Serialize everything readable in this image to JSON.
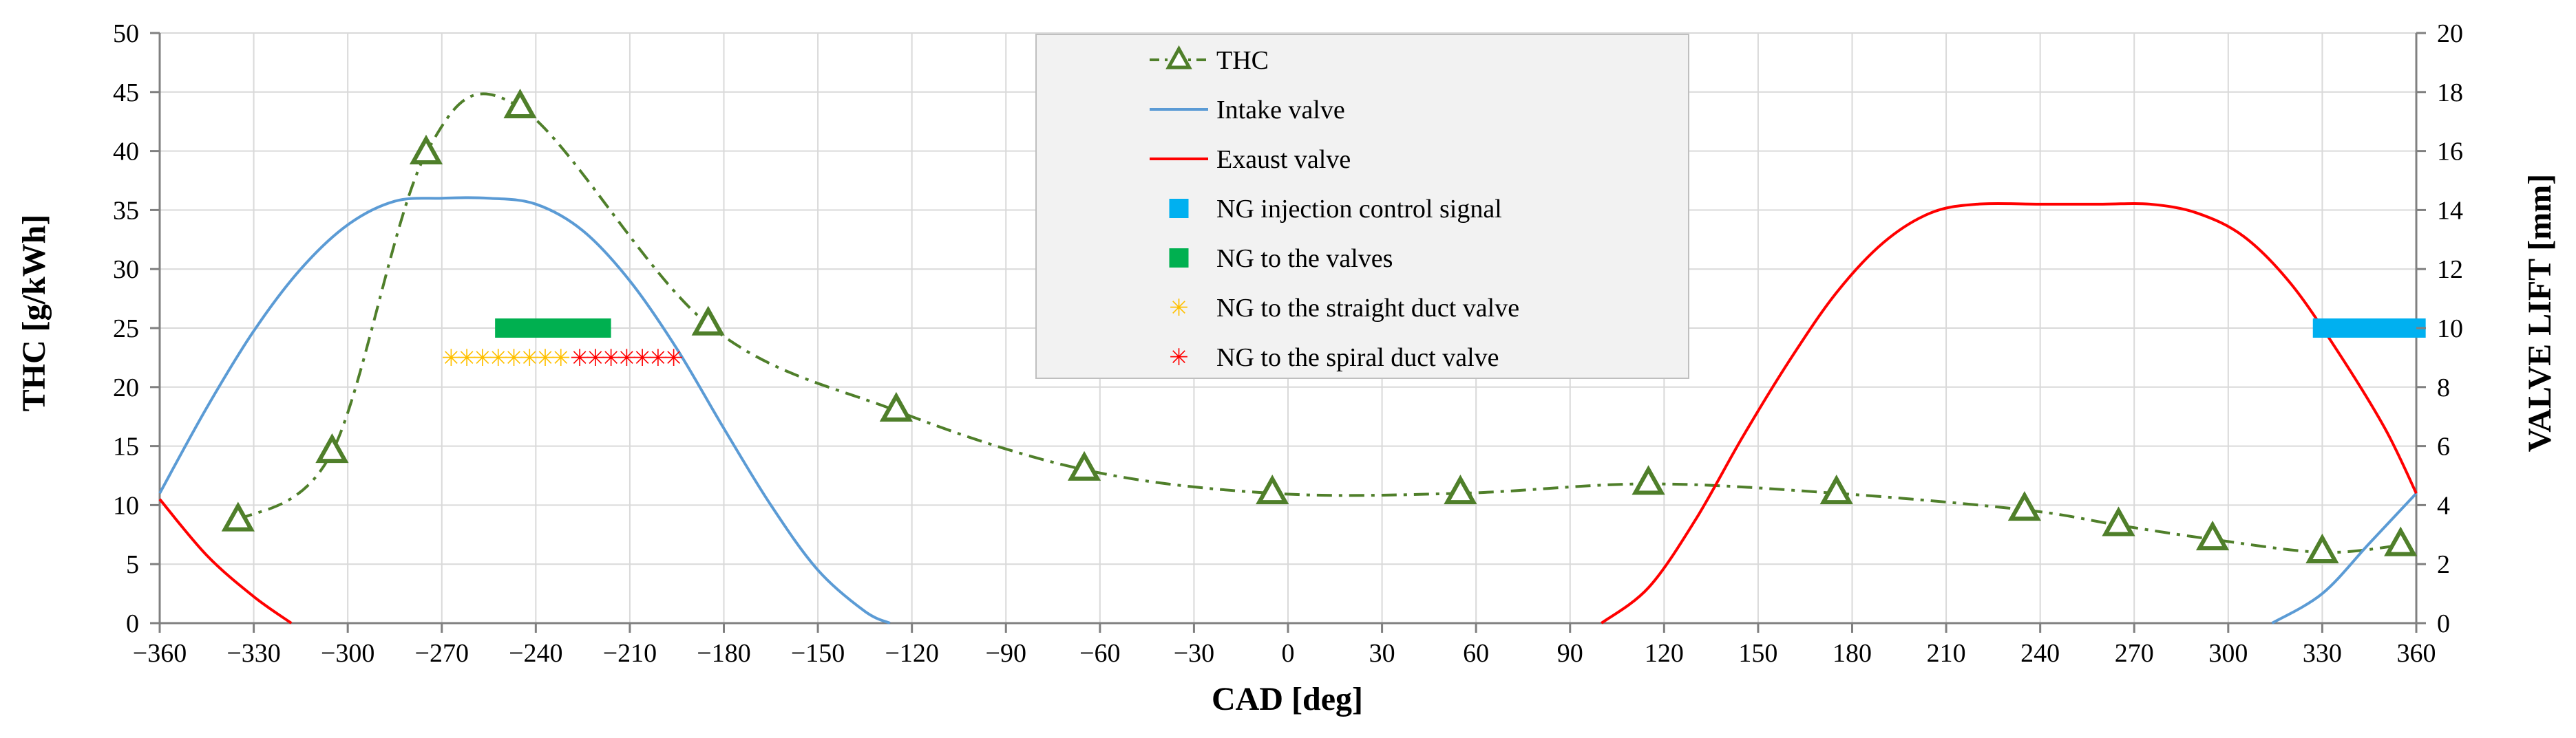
{
  "chart_data": {
    "type": "line",
    "title": "",
    "xlabel": "CAD [deg]",
    "ylabel": "THC [g/kWh]",
    "y2label": "VALVE LIFT [mm]",
    "xlim": [
      -360,
      360
    ],
    "ylim": [
      0,
      50
    ],
    "y2lim": [
      0,
      20
    ],
    "grid": true,
    "legend_position": "top-center",
    "x_ticks": [
      -360,
      -330,
      -300,
      -270,
      -240,
      -210,
      -180,
      -150,
      -120,
      -90,
      -60,
      -30,
      0,
      30,
      60,
      90,
      120,
      150,
      180,
      210,
      240,
      270,
      300,
      330,
      360
    ],
    "y_ticks": [
      0,
      5,
      10,
      15,
      20,
      25,
      30,
      35,
      40,
      45,
      50
    ],
    "y2_ticks": [
      0,
      2,
      4,
      6,
      8,
      10,
      12,
      14,
      16,
      18,
      20
    ],
    "x_tick_labels": [
      "−360",
      "−330",
      "−300",
      "−270",
      "−240",
      "−210",
      "−180",
      "−150",
      "−120",
      "−90",
      "−60",
      "−30",
      "0",
      "30",
      "60",
      "90",
      "120",
      "150",
      "180",
      "210",
      "240",
      "270",
      "300",
      "330",
      "360"
    ],
    "y_tick_labels": [
      "0",
      "5",
      "10",
      "15",
      "20",
      "25",
      "30",
      "35",
      "40",
      "45",
      "50"
    ],
    "y2_tick_labels": [
      "0",
      "2",
      "4",
      "6",
      "8",
      "10",
      "12",
      "14",
      "16",
      "18",
      "20"
    ],
    "series": [
      {
        "name": "THC",
        "axis": "left",
        "color": "#4F7F2A",
        "style": "dash-dot",
        "marker": "triangle",
        "points": [
          [
            -335,
            8.7
          ],
          [
            -305,
            14.5
          ],
          [
            -275,
            39.8
          ],
          [
            -245,
            43.7
          ],
          [
            -185,
            25.3
          ],
          [
            -125,
            18.0
          ],
          [
            -65,
            13.0
          ],
          [
            -5,
            11.0
          ],
          [
            55,
            11.0
          ],
          [
            115,
            11.8
          ],
          [
            175,
            11.0
          ],
          [
            235,
            9.6
          ],
          [
            265,
            8.3
          ],
          [
            295,
            7.1
          ],
          [
            330,
            6.0
          ],
          [
            355,
            6.6
          ]
        ]
      },
      {
        "name": "Intake valve",
        "axis": "right",
        "color": "#5B9BD5",
        "style": "solid",
        "peak_lift": 14.4,
        "points": [
          [
            -360,
            4.4
          ],
          [
            -345,
            7.3
          ],
          [
            -330,
            9.9
          ],
          [
            -315,
            12.0
          ],
          [
            -300,
            13.5
          ],
          [
            -285,
            14.3
          ],
          [
            -270,
            14.4
          ],
          [
            -255,
            14.4
          ],
          [
            -240,
            14.2
          ],
          [
            -225,
            13.3
          ],
          [
            -210,
            11.6
          ],
          [
            -195,
            9.3
          ],
          [
            -180,
            6.6
          ],
          [
            -165,
            4.0
          ],
          [
            -150,
            1.8
          ],
          [
            -135,
            0.4
          ],
          [
            -127,
            0
          ],
          [
            314,
            0
          ],
          [
            330,
            1.0
          ],
          [
            345,
            2.7
          ],
          [
            360,
            4.4
          ]
        ]
      },
      {
        "name": "Exaust valve",
        "axis": "right",
        "color": "#FF0000",
        "style": "solid",
        "peak_lift": 14.2,
        "points": [
          [
            -360,
            4.2
          ],
          [
            -345,
            2.3
          ],
          [
            -330,
            0.9
          ],
          [
            -318,
            0
          ],
          [
            100,
            0
          ],
          [
            115,
            1.2
          ],
          [
            130,
            3.5
          ],
          [
            145,
            6.3
          ],
          [
            160,
            8.9
          ],
          [
            175,
            11.2
          ],
          [
            190,
            12.9
          ],
          [
            205,
            13.9
          ],
          [
            220,
            14.2
          ],
          [
            240,
            14.2
          ],
          [
            260,
            14.2
          ],
          [
            275,
            14.2
          ],
          [
            290,
            13.9
          ],
          [
            305,
            13.1
          ],
          [
            320,
            11.5
          ],
          [
            335,
            9.2
          ],
          [
            350,
            6.6
          ],
          [
            360,
            4.4
          ]
        ]
      }
    ],
    "bars": [
      {
        "name": "NG injection control signal",
        "axis": "left",
        "color": "#00B0F0",
        "x_start": 327,
        "x_end": 363,
        "y": 25
      },
      {
        "name": "NG to the valves",
        "axis": "left",
        "color": "#00B050",
        "x_start": -253,
        "x_end": -216,
        "y": 25
      }
    ],
    "markers": [
      {
        "name": "NG to the straight duct valve",
        "axis": "left",
        "color": "#FFC000",
        "symbol": "✳",
        "y": 22.5,
        "x": [
          -267,
          -262,
          -257,
          -252,
          -247,
          -242,
          -237,
          -232
        ]
      },
      {
        "name": "NG to the spiral duct valve",
        "axis": "left",
        "color": "#FF0000",
        "symbol": "✳",
        "y": 22.5,
        "x": [
          -226,
          -221,
          -216,
          -211,
          -206,
          -201,
          -196
        ]
      }
    ],
    "legend": [
      {
        "label": "THC",
        "kind": "line-marker",
        "color": "#4F7F2A"
      },
      {
        "label": "Intake valve",
        "kind": "line",
        "color": "#5B9BD5"
      },
      {
        "label": "Exaust valve",
        "kind": "line",
        "color": "#FF0000"
      },
      {
        "label": "NG injection control signal",
        "kind": "square",
        "color": "#00B0F0"
      },
      {
        "label": "NG to the valves",
        "kind": "square",
        "color": "#00B050"
      },
      {
        "label": "NG to the straight duct valve",
        "kind": "star",
        "color": "#FFC000"
      },
      {
        "label": "NG to the spiral duct valve",
        "kind": "star",
        "color": "#FF0000"
      }
    ]
  }
}
